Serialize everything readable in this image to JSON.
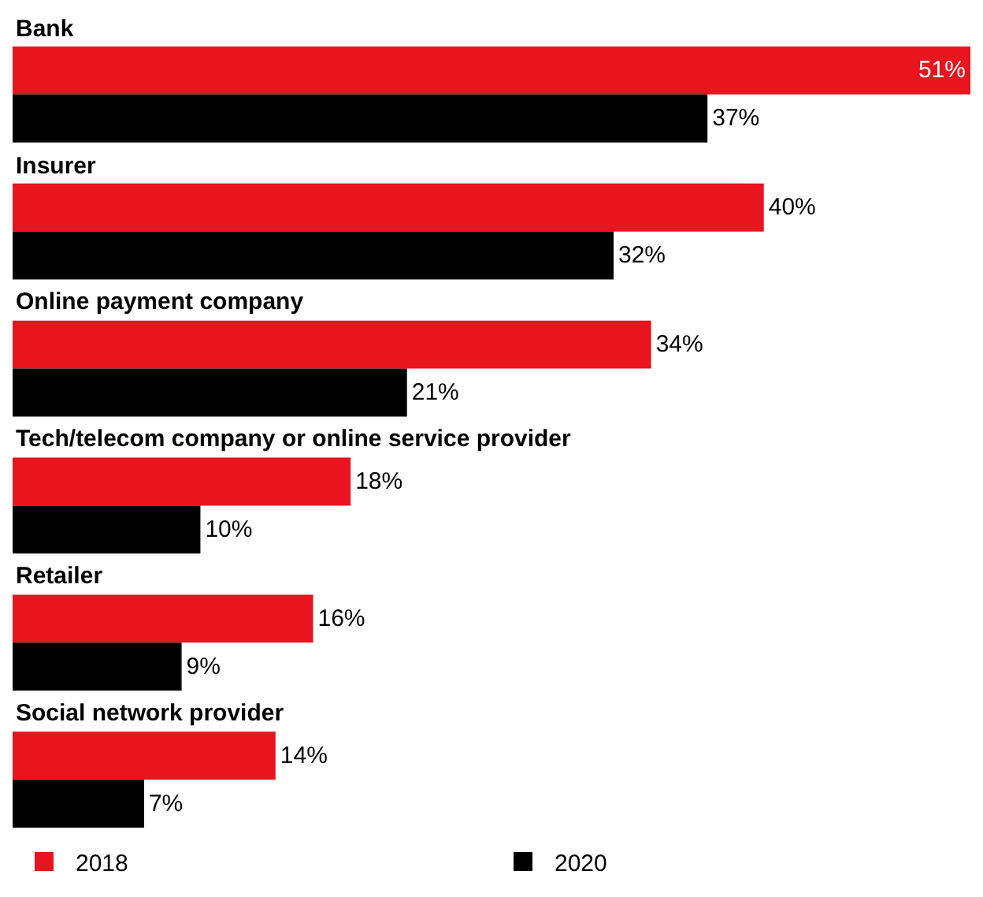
{
  "chart_data": {
    "type": "bar",
    "orientation": "horizontal",
    "categories": [
      "Bank",
      "Insurer",
      "Online payment company",
      "Tech/telecom company or online service provider",
      "Retailer",
      "Social network provider"
    ],
    "series": [
      {
        "name": "2018",
        "color": "#e8141e",
        "values": [
          51,
          40,
          34,
          18,
          16,
          14
        ],
        "value_labels": [
          "51%",
          "40%",
          "34%",
          "18%",
          "16%",
          "14%"
        ]
      },
      {
        "name": "2020",
        "color": "#000000",
        "values": [
          37,
          32,
          21,
          10,
          9,
          7
        ],
        "value_labels": [
          "37%",
          "32%",
          "21%",
          "10%",
          "9%",
          "7%"
        ]
      }
    ],
    "grid": false,
    "legend": "bottom"
  }
}
